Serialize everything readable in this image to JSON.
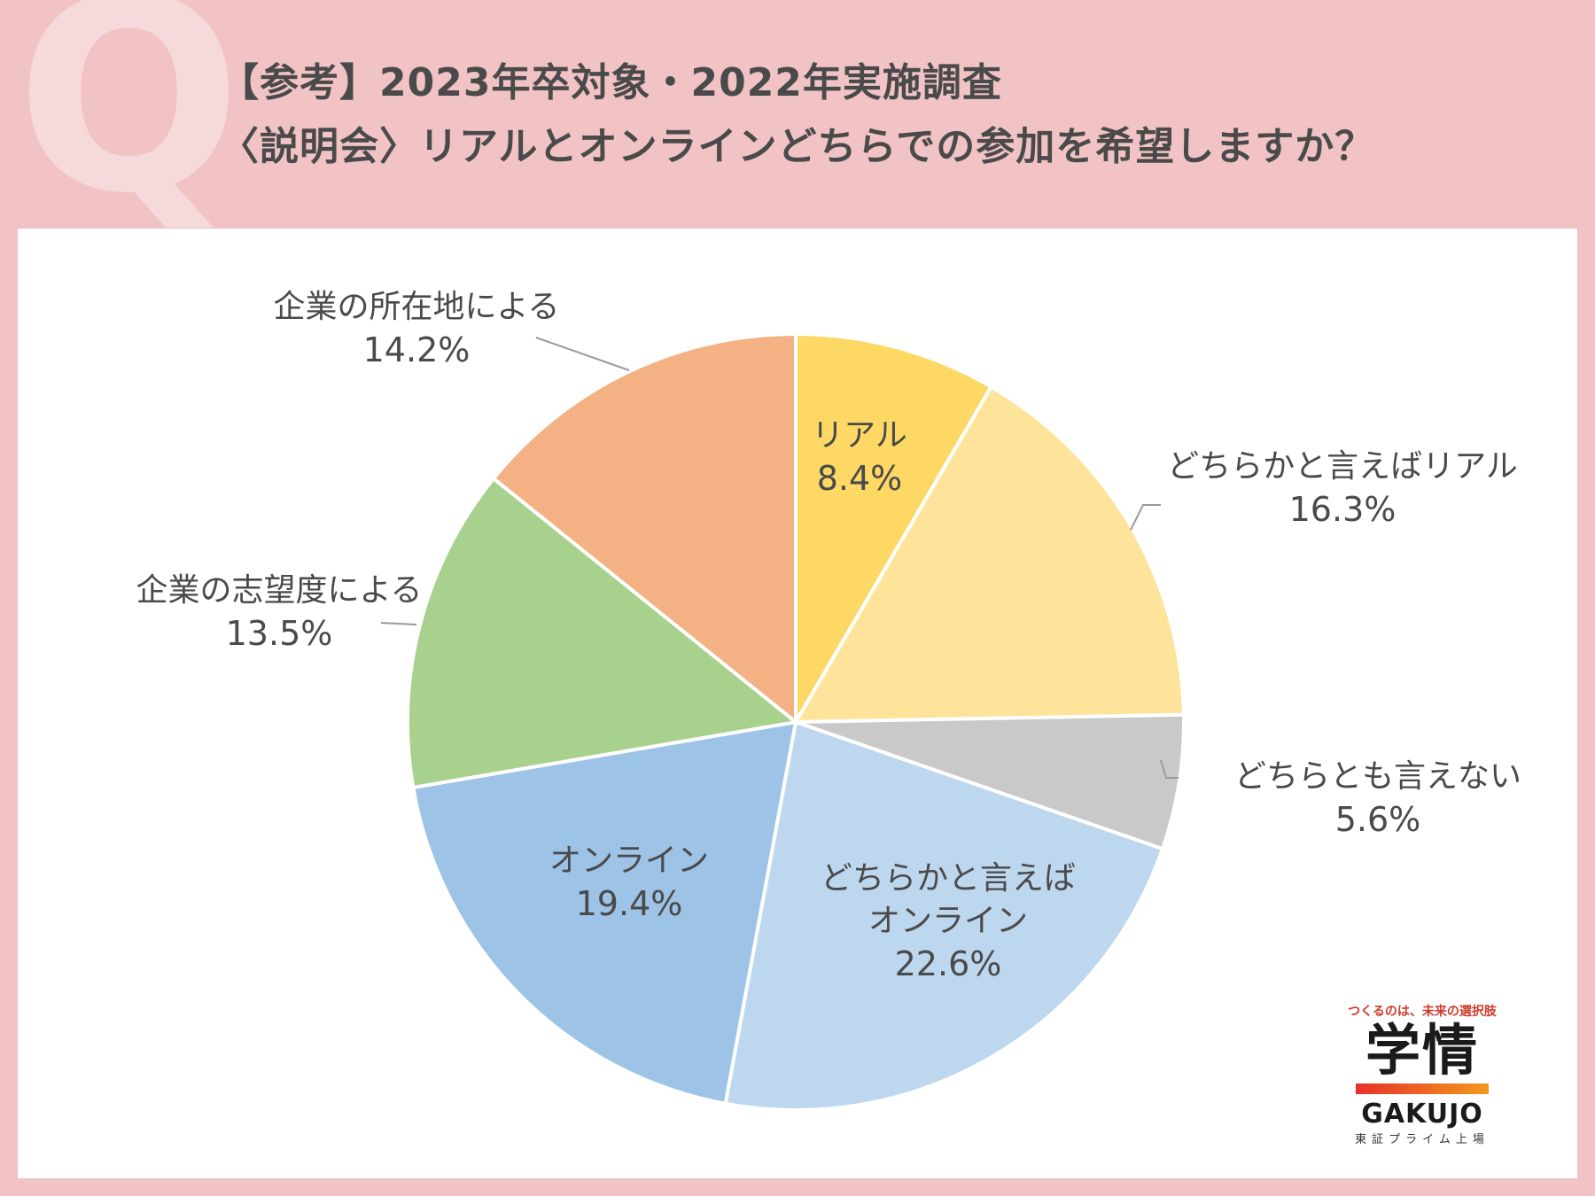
{
  "header": {
    "q_mark": "Q",
    "line1": "【参考】2023年卒対象・2022年実施調査",
    "line2": "〈説明会〉リアルとオンラインどちらでの参加を希望しますか？"
  },
  "chart_data": {
    "type": "pie",
    "start": "12 o'clock, clockwise",
    "slices": [
      {
        "label": "リアル",
        "label_lines": [
          "リアル"
        ],
        "value": 8.4,
        "value_label": "8.4%",
        "color": "#fdd865"
      },
      {
        "label": "どちらかと言えばリアル",
        "label_lines": [
          "どちらかと言えばリアル"
        ],
        "value": 16.3,
        "value_label": "16.3%",
        "color": "#fee49a"
      },
      {
        "label": "どちらとも言えない",
        "label_lines": [
          "どちらとも言えない"
        ],
        "value": 5.6,
        "value_label": "5.6%",
        "color": "#c9c9c9"
      },
      {
        "label": "どちらかと言えばオンライン",
        "label_lines": [
          "どちらかと言えば",
          "オンライン"
        ],
        "value": 22.6,
        "value_label": "22.6%",
        "color": "#bdd7ee"
      },
      {
        "label": "オンライン",
        "label_lines": [
          "オンライン"
        ],
        "value": 19.4,
        "value_label": "19.4%",
        "color": "#9dc3e6"
      },
      {
        "label": "企業の志望度による",
        "label_lines": [
          "企業の志望度による"
        ],
        "value": 13.5,
        "value_label": "13.5%",
        "color": "#a9d18e"
      },
      {
        "label": "企業の所在地による",
        "label_lines": [
          "企業の所在地による"
        ],
        "value": 14.2,
        "value_label": "14.2%",
        "color": "#f4b183"
      }
    ]
  },
  "brand": {
    "tagline": "つくるのは、未来の選択肢",
    "logo": "学情",
    "name_en": "GAKUJO",
    "sub": "東証プライム上場"
  }
}
